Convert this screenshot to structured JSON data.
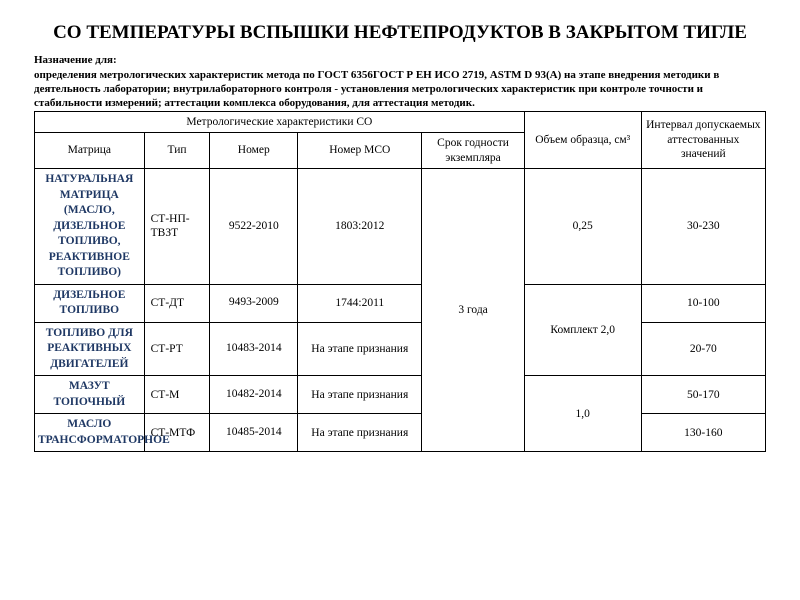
{
  "title": "СО ТЕМПЕРАТУРЫ ВСПЫШКИ НЕФТЕПРОДУКТОВ В ЗАКРЫТОМ ТИГЛЕ",
  "purpose_label": "Назначение для:",
  "purpose_text": "определения метрологических характеристик метода по ГОСТ 6356ГОСТ Р ЕН ИСО 2719, ASTM D 93(А) на этапе внедрения методики в деятельность лаборатории; внутрилабораторного контроля - установления метрологических характеристик при контроле точности и стабильности измерений; аттестации комплекса оборудования, для аттестация методик.",
  "headers": {
    "group": "Метрологические характеристики СО",
    "matrix": "Матрица",
    "type": "Тип",
    "number": "Номер",
    "mco": "Номер МСО",
    "shelf": "Срок годности экземпляра",
    "volume": "Объем образца, см³",
    "range": "Интервал допускаемых аттестованных значений"
  },
  "rows": [
    {
      "matrix": "НАТУРАЛЬНАЯ МАТРИЦА (МАСЛО, ДИЗЕЛЬНОЕ ТОПЛИВО, РЕАКТИВНОЕ ТОПЛИВО)",
      "type": "СТ-НП-ТВЗТ",
      "number": "9522-2010",
      "mco": "1803:2012",
      "range": "30-230"
    },
    {
      "matrix": "ДИЗЕЛЬНОЕ ТОПЛИВО",
      "type": "СТ-ДТ",
      "number": "9493-2009",
      "mco": "1744:2011",
      "range": "10-100"
    },
    {
      "matrix": "ТОПЛИВО ДЛЯ РЕАКТИВНЫХ ДВИГАТЕЛЕЙ",
      "type": "СТ-РТ",
      "number": "10483-2014",
      "mco": "На этапе признания",
      "range": "20-70"
    },
    {
      "matrix": "МАЗУТ ТОПОЧНЫЙ",
      "type": "СТ-М",
      "number": "10482-2014",
      "mco": "На этапе признания",
      "range": "50-170"
    },
    {
      "matrix": "МАСЛО ТРАНСФОРМАТОРНОЕ",
      "type": "СТ-МТФ",
      "number": "10485-2014",
      "mco": "На этапе признания",
      "range": "130-160"
    }
  ],
  "shelf_value": "3 года",
  "volume_values": {
    "v1": "0,25",
    "v2": "Комплект 2,0",
    "v3": "1,0"
  },
  "colors": {
    "background": "#ffffff",
    "text": "#000000",
    "matrix_text": "#1f3864",
    "border": "#000000"
  },
  "fonts": {
    "title_size_pt": 14,
    "body_size_pt": 8,
    "table_size_pt": 9
  }
}
